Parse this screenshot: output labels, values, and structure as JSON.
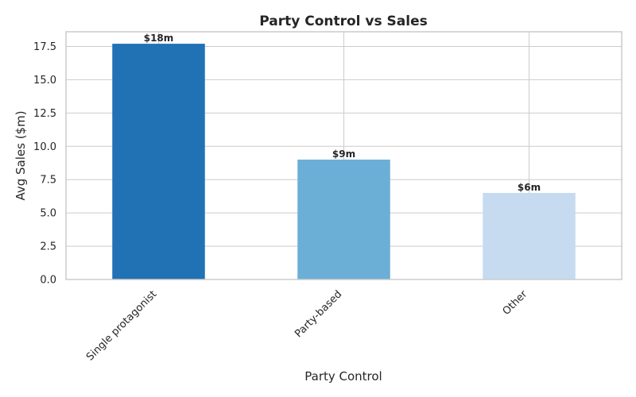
{
  "chart_data": {
    "type": "bar",
    "title": "Party Control vs Sales",
    "xlabel": "Party Control",
    "ylabel": "Avg Sales ($m)",
    "categories": [
      "Single protagonist",
      "Party-based",
      "Other"
    ],
    "values": [
      17.7,
      9.0,
      6.5
    ],
    "data_labels": [
      "$18m",
      "$9m",
      "$6m"
    ],
    "colors": [
      "#2171b5",
      "#6baed6",
      "#c6dbef"
    ],
    "ylim": [
      0,
      18.6
    ],
    "yticks": [
      0.0,
      2.5,
      5.0,
      7.5,
      10.0,
      12.5,
      15.0,
      17.5
    ],
    "ytick_labels": [
      "0.0",
      "2.5",
      "5.0",
      "7.5",
      "10.0",
      "12.5",
      "15.0",
      "17.5"
    ],
    "grid": true,
    "legend": "none"
  }
}
